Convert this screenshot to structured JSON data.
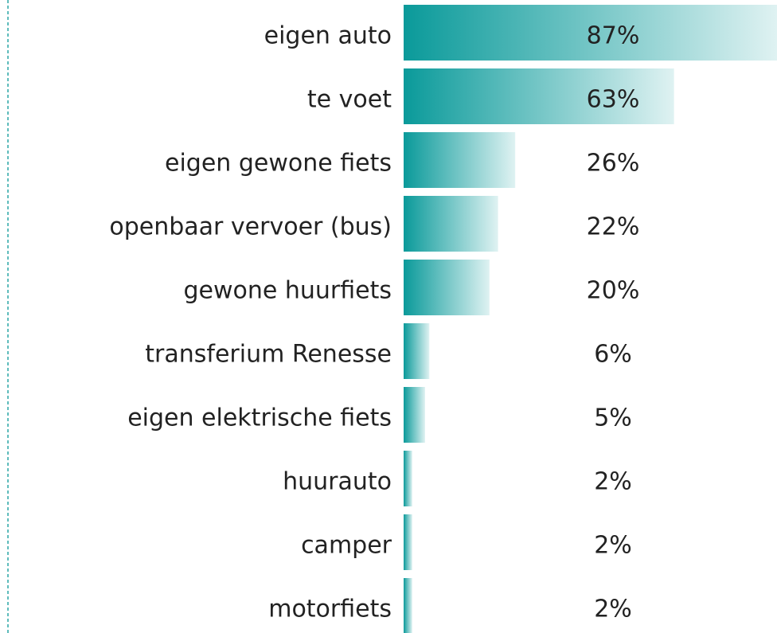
{
  "chart_data": {
    "type": "bar",
    "orientation": "horizontal",
    "categories": [
      "eigen auto",
      "te voet",
      "eigen gewone fiets",
      "openbaar vervoer (bus)",
      "gewone huurfiets",
      "transferium Renesse",
      "eigen elektrische fiets",
      "huurauto",
      "camper",
      "motorfiets"
    ],
    "values": [
      87,
      63,
      26,
      22,
      20,
      6,
      5,
      2,
      2,
      2
    ],
    "value_labels": [
      "87%",
      "63%",
      "26%",
      "22%",
      "20%",
      "6%",
      "5%",
      "2%",
      "2%",
      "2%"
    ],
    "color": "#0a9a9a"
  }
}
